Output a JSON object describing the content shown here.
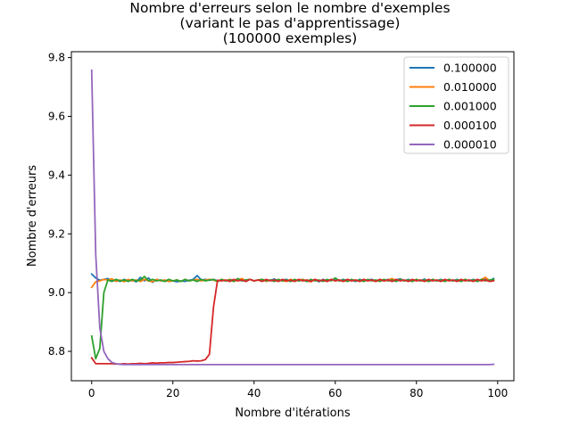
{
  "chart_data": {
    "type": "line",
    "title_lines": [
      "Nombre d'erreurs selon le nombre d'exemples",
      "(variant le pas d'apprentissage)",
      "(100000 exemples)"
    ],
    "xlabel": "Nombre d'itérations",
    "ylabel": "Nombre d'erreurs",
    "xlim": [
      -5,
      104
    ],
    "ylim": [
      8.7,
      9.82
    ],
    "xticks": [
      0,
      20,
      40,
      60,
      80,
      100
    ],
    "yticks": [
      8.8,
      9.0,
      9.2,
      9.4,
      9.6,
      9.8
    ],
    "xtick_labels": [
      "0",
      "20",
      "40",
      "60",
      "80",
      "100"
    ],
    "ytick_labels": [
      "8.8",
      "9.0",
      "9.2",
      "9.4",
      "9.6",
      "9.8"
    ],
    "grid": false,
    "legend_position": "top-right",
    "series": [
      {
        "name": "0.100000",
        "color": "#1f77b4",
        "x": [
          0,
          1,
          2,
          3,
          4,
          5,
          6,
          7,
          8,
          9,
          10,
          11,
          12,
          13,
          14,
          15,
          16,
          17,
          18,
          19,
          20,
          21,
          22,
          23,
          24,
          25,
          26,
          27,
          28,
          29,
          30,
          31,
          32,
          33,
          34,
          35,
          36,
          37,
          38,
          39,
          40,
          41,
          42,
          43,
          44,
          45,
          46,
          47,
          48,
          49,
          50,
          51,
          52,
          53,
          54,
          55,
          56,
          57,
          58,
          59,
          60,
          61,
          62,
          63,
          64,
          65,
          66,
          67,
          68,
          69,
          70,
          71,
          72,
          73,
          74,
          75,
          76,
          77,
          78,
          79,
          80,
          81,
          82,
          83,
          84,
          85,
          86,
          87,
          88,
          89,
          90,
          91,
          92,
          93,
          94,
          95,
          96,
          97,
          98,
          99
        ],
        "y": [
          9.063,
          9.05,
          9.042,
          9.045,
          9.048,
          9.04,
          9.043,
          9.038,
          9.045,
          9.04,
          9.042,
          9.037,
          9.052,
          9.04,
          9.05,
          9.035,
          9.045,
          9.04,
          9.042,
          9.038,
          9.04,
          9.037,
          9.04,
          9.038,
          9.042,
          9.045,
          9.058,
          9.043,
          9.045,
          9.042,
          9.045,
          9.04,
          9.043,
          9.04,
          9.045,
          9.042,
          9.046,
          9.04,
          9.043,
          9.045,
          9.04,
          9.043,
          9.045,
          9.04,
          9.042,
          9.046,
          9.04,
          9.043,
          9.045,
          9.038,
          9.043,
          9.04,
          9.045,
          9.038,
          9.04,
          9.043,
          9.037,
          9.045,
          9.04,
          9.043,
          9.047,
          9.04,
          9.045,
          9.04,
          9.043,
          9.038,
          9.045,
          9.04,
          9.043,
          9.045,
          9.04,
          9.043,
          9.04,
          9.045,
          9.04,
          9.043,
          9.047,
          9.04,
          9.045,
          9.04,
          9.043,
          9.04,
          9.046,
          9.038,
          9.043,
          9.04,
          9.045,
          9.04,
          9.043,
          9.04,
          9.045,
          9.04,
          9.043,
          9.04,
          9.045,
          9.04,
          9.043,
          9.045,
          9.04,
          9.048
        ]
      },
      {
        "name": "0.010000",
        "color": "#ff7f0e",
        "x": [
          0,
          1,
          2,
          3,
          4,
          5,
          6,
          7,
          8,
          9,
          10,
          11,
          12,
          13,
          14,
          15,
          16,
          17,
          18,
          19,
          20,
          21,
          22,
          23,
          24,
          25,
          26,
          27,
          28,
          29,
          30,
          31,
          32,
          33,
          34,
          35,
          36,
          37,
          38,
          39,
          40,
          41,
          42,
          43,
          44,
          45,
          46,
          47,
          48,
          49,
          50,
          51,
          52,
          53,
          54,
          55,
          56,
          57,
          58,
          59,
          60,
          61,
          62,
          63,
          64,
          65,
          66,
          67,
          68,
          69,
          70,
          71,
          72,
          73,
          74,
          75,
          76,
          77,
          78,
          79,
          80,
          81,
          82,
          83,
          84,
          85,
          86,
          87,
          88,
          89,
          90,
          91,
          92,
          93,
          94,
          95,
          96,
          97,
          98,
          99
        ],
        "y": [
          9.018,
          9.037,
          9.04,
          9.045,
          9.043,
          9.047,
          9.038,
          9.043,
          9.037,
          9.045,
          9.04,
          9.043,
          9.038,
          9.045,
          9.04,
          9.037,
          9.045,
          9.04,
          9.043,
          9.038,
          9.04,
          9.043,
          9.038,
          9.045,
          9.04,
          9.043,
          9.045,
          9.04,
          9.043,
          9.045,
          9.043,
          9.037,
          9.045,
          9.04,
          9.045,
          9.038,
          9.043,
          9.048,
          9.04,
          9.045,
          9.04,
          9.043,
          9.045,
          9.038,
          9.043,
          9.04,
          9.045,
          9.04,
          9.038,
          9.045,
          9.04,
          9.043,
          9.045,
          9.04,
          9.037,
          9.045,
          9.04,
          9.043,
          9.038,
          9.045,
          9.04,
          9.043,
          9.038,
          9.045,
          9.04,
          9.043,
          9.038,
          9.045,
          9.04,
          9.043,
          9.038,
          9.045,
          9.04,
          9.043,
          9.048,
          9.04,
          9.045,
          9.04,
          9.043,
          9.038,
          9.045,
          9.04,
          9.043,
          9.038,
          9.045,
          9.04,
          9.043,
          9.038,
          9.045,
          9.04,
          9.043,
          9.038,
          9.045,
          9.04,
          9.043,
          9.038,
          9.045,
          9.052,
          9.04,
          9.043
        ]
      },
      {
        "name": "0.001000",
        "color": "#2ca02c",
        "x": [
          0,
          1,
          2,
          3,
          4,
          5,
          6,
          7,
          8,
          9,
          10,
          11,
          12,
          13,
          14,
          15,
          16,
          17,
          18,
          19,
          20,
          21,
          22,
          23,
          24,
          25,
          26,
          27,
          28,
          29,
          30,
          31,
          32,
          33,
          34,
          35,
          36,
          37,
          38,
          39,
          40,
          41,
          42,
          43,
          44,
          45,
          46,
          47,
          48,
          49,
          50,
          51,
          52,
          53,
          54,
          55,
          56,
          57,
          58,
          59,
          60,
          61,
          62,
          63,
          64,
          65,
          66,
          67,
          68,
          69,
          70,
          71,
          72,
          73,
          74,
          75,
          76,
          77,
          78,
          79,
          80,
          81,
          82,
          83,
          84,
          85,
          86,
          87,
          88,
          89,
          90,
          91,
          92,
          93,
          94,
          95,
          96,
          97,
          98,
          99
        ],
        "y": [
          8.852,
          8.775,
          8.81,
          9.0,
          9.043,
          9.038,
          9.045,
          9.04,
          9.043,
          9.038,
          9.045,
          9.04,
          9.043,
          9.055,
          9.04,
          9.045,
          9.04,
          9.043,
          9.038,
          9.045,
          9.04,
          9.043,
          9.038,
          9.045,
          9.04,
          9.043,
          9.038,
          9.045,
          9.04,
          9.043,
          9.045,
          9.038,
          9.045,
          9.04,
          9.043,
          9.038,
          9.048,
          9.04,
          9.043,
          9.045,
          9.04,
          9.043,
          9.045,
          9.04,
          9.043,
          9.038,
          9.045,
          9.04,
          9.043,
          9.038,
          9.045,
          9.04,
          9.043,
          9.038,
          9.045,
          9.04,
          9.043,
          9.038,
          9.045,
          9.04,
          9.05,
          9.04,
          9.043,
          9.038,
          9.045,
          9.04,
          9.043,
          9.038,
          9.045,
          9.04,
          9.043,
          9.038,
          9.045,
          9.04,
          9.043,
          9.038,
          9.045,
          9.04,
          9.043,
          9.038,
          9.045,
          9.04,
          9.043,
          9.038,
          9.045,
          9.04,
          9.043,
          9.038,
          9.045,
          9.04,
          9.043,
          9.038,
          9.045,
          9.04,
          9.043,
          9.038,
          9.045,
          9.04,
          9.043,
          9.045
        ]
      },
      {
        "name": "0.000100",
        "color": "#d62728",
        "x": [
          0,
          1,
          2,
          3,
          4,
          5,
          6,
          7,
          8,
          9,
          10,
          11,
          12,
          13,
          14,
          15,
          16,
          17,
          18,
          19,
          20,
          21,
          22,
          23,
          24,
          25,
          26,
          27,
          28,
          29,
          30,
          31,
          32,
          33,
          34,
          35,
          36,
          37,
          38,
          39,
          40,
          41,
          42,
          43,
          44,
          45,
          46,
          47,
          48,
          49,
          50,
          51,
          52,
          53,
          54,
          55,
          56,
          57,
          58,
          59,
          60,
          61,
          62,
          63,
          64,
          65,
          66,
          67,
          68,
          69,
          70,
          71,
          72,
          73,
          74,
          75,
          76,
          77,
          78,
          79,
          80,
          81,
          82,
          83,
          84,
          85,
          86,
          87,
          88,
          89,
          90,
          91,
          92,
          93,
          94,
          95,
          96,
          97,
          98,
          99
        ],
        "y": [
          8.778,
          8.758,
          8.758,
          8.758,
          8.758,
          8.758,
          8.757,
          8.757,
          8.758,
          8.757,
          8.758,
          8.758,
          8.759,
          8.758,
          8.759,
          8.761,
          8.76,
          8.761,
          8.761,
          8.762,
          8.762,
          8.763,
          8.764,
          8.765,
          8.766,
          8.768,
          8.767,
          8.768,
          8.772,
          8.79,
          8.95,
          9.042,
          9.04,
          9.043,
          9.038,
          9.045,
          9.04,
          9.043,
          9.038,
          9.045,
          9.04,
          9.043,
          9.038,
          9.045,
          9.04,
          9.043,
          9.038,
          9.045,
          9.04,
          9.043,
          9.038,
          9.045,
          9.04,
          9.043,
          9.038,
          9.045,
          9.04,
          9.043,
          9.038,
          9.045,
          9.04,
          9.043,
          9.038,
          9.045,
          9.04,
          9.043,
          9.038,
          9.045,
          9.04,
          9.043,
          9.038,
          9.045,
          9.04,
          9.043,
          9.038,
          9.045,
          9.04,
          9.043,
          9.038,
          9.045,
          9.04,
          9.043,
          9.038,
          9.045,
          9.04,
          9.043,
          9.038,
          9.045,
          9.04,
          9.043,
          9.038,
          9.045,
          9.04,
          9.043,
          9.038,
          9.045,
          9.04,
          9.043,
          9.038,
          9.04
        ]
      },
      {
        "name": "0.000010",
        "color": "#9467bd",
        "x": [
          0,
          1,
          2,
          3,
          4,
          5,
          6,
          7,
          8,
          9,
          10,
          11,
          12,
          13,
          14,
          15,
          16,
          17,
          18,
          19,
          20,
          21,
          22,
          23,
          24,
          25,
          26,
          27,
          28,
          29,
          30,
          31,
          32,
          33,
          34,
          35,
          36,
          37,
          38,
          39,
          40,
          41,
          42,
          43,
          44,
          45,
          46,
          47,
          48,
          49,
          50,
          51,
          52,
          53,
          54,
          55,
          56,
          57,
          58,
          59,
          60,
          61,
          62,
          63,
          64,
          65,
          66,
          67,
          68,
          69,
          70,
          71,
          72,
          73,
          74,
          75,
          76,
          77,
          78,
          79,
          80,
          81,
          82,
          83,
          84,
          85,
          86,
          87,
          88,
          89,
          90,
          91,
          92,
          93,
          94,
          95,
          96,
          97,
          98,
          99
        ],
        "y": [
          9.757,
          9.13,
          8.88,
          8.8,
          8.775,
          8.762,
          8.758,
          8.756,
          8.755,
          8.755,
          8.755,
          8.755,
          8.755,
          8.755,
          8.755,
          8.755,
          8.755,
          8.755,
          8.755,
          8.755,
          8.755,
          8.755,
          8.755,
          8.755,
          8.755,
          8.755,
          8.755,
          8.755,
          8.755,
          8.755,
          8.755,
          8.755,
          8.755,
          8.755,
          8.755,
          8.755,
          8.755,
          8.755,
          8.755,
          8.755,
          8.755,
          8.755,
          8.755,
          8.755,
          8.755,
          8.755,
          8.755,
          8.755,
          8.755,
          8.755,
          8.755,
          8.755,
          8.755,
          8.755,
          8.755,
          8.755,
          8.755,
          8.755,
          8.755,
          8.755,
          8.755,
          8.755,
          8.755,
          8.755,
          8.755,
          8.755,
          8.755,
          8.755,
          8.755,
          8.755,
          8.755,
          8.755,
          8.755,
          8.755,
          8.755,
          8.755,
          8.755,
          8.755,
          8.755,
          8.755,
          8.755,
          8.755,
          8.755,
          8.755,
          8.755,
          8.755,
          8.755,
          8.755,
          8.755,
          8.755,
          8.755,
          8.755,
          8.755,
          8.755,
          8.755,
          8.755,
          8.755,
          8.755,
          8.755,
          8.756
        ]
      }
    ]
  }
}
